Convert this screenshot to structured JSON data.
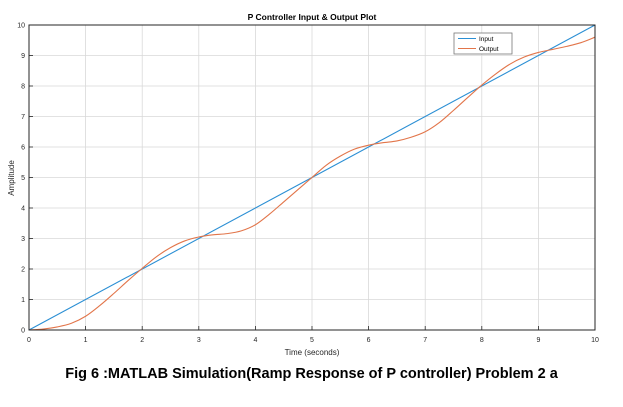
{
  "figure": {
    "caption": "Fig 6 :MATLAB Simulation(Ramp Response of P controller) Problem 2 a"
  },
  "colors": {
    "input": "#2b8fd4",
    "output": "#e2754a",
    "grid": "#d9d9d9",
    "axis": "#262626",
    "background": "#ffffff"
  },
  "chart_data": {
    "type": "line",
    "title": "P Controller Input & Output Plot",
    "xlabel": "Time (seconds)",
    "ylabel": "Amplitude",
    "xlim": [
      0,
      10
    ],
    "ylim": [
      0,
      10
    ],
    "xticks": [
      0,
      1,
      2,
      3,
      4,
      5,
      6,
      7,
      8,
      9,
      10
    ],
    "yticks": [
      0,
      1,
      2,
      3,
      4,
      5,
      6,
      7,
      8,
      9,
      10
    ],
    "grid": true,
    "legend_position": "top-right",
    "series": [
      {
        "name": "Input",
        "color": "#2b8fd4",
        "x": [
          0,
          10
        ],
        "y": [
          0,
          10
        ]
      },
      {
        "name": "Output",
        "color": "#e2754a",
        "x": [
          0,
          0.25,
          0.5,
          0.75,
          1.0,
          1.25,
          1.5,
          1.75,
          2.0,
          2.25,
          2.5,
          2.75,
          3.0,
          3.25,
          3.5,
          3.75,
          4.0,
          4.25,
          4.5,
          4.75,
          5.0,
          5.25,
          5.5,
          5.75,
          6.0,
          6.25,
          6.5,
          6.75,
          7.0,
          7.25,
          7.5,
          7.75,
          8.0,
          8.25,
          8.5,
          8.75,
          9.0,
          9.25,
          9.5,
          9.75,
          10.0
        ],
        "y": [
          0,
          0.03,
          0.1,
          0.22,
          0.45,
          0.8,
          1.2,
          1.62,
          2.02,
          2.4,
          2.7,
          2.92,
          3.05,
          3.12,
          3.16,
          3.25,
          3.45,
          3.8,
          4.2,
          4.6,
          5.0,
          5.4,
          5.7,
          5.93,
          6.06,
          6.14,
          6.2,
          6.32,
          6.5,
          6.8,
          7.2,
          7.62,
          8.03,
          8.4,
          8.72,
          8.95,
          9.1,
          9.2,
          9.3,
          9.42,
          9.6
        ]
      }
    ]
  }
}
